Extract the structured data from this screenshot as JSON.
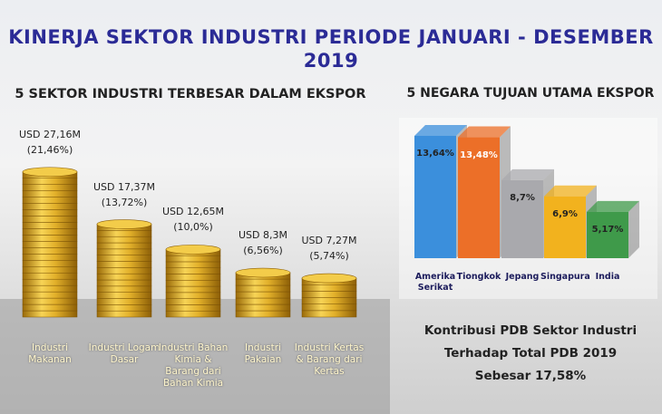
{
  "title": "KINERJA SEKTOR INDUSTRI PERIODE JANUARI - DESEMBER 2019",
  "chart_data": [
    {
      "type": "coin-stack",
      "title": "5 SEKTOR INDUSTRI TERBESAR DALAM EKSPOR",
      "categories": [
        "Industri Makanan",
        "Industri Logam Dasar",
        "Industri Bahan Kimia & Barang dari Bahan Kimia",
        "Industri Pakaian",
        "Industri Kertas & Barang dari Kertas"
      ],
      "values": [
        27.16,
        17.37,
        12.65,
        8.3,
        7.27
      ],
      "value_labels": [
        "USD 27,16M",
        "USD 17,37M",
        "USD 12,65M",
        "USD 8,3M",
        "USD 7,27M"
      ],
      "shares": [
        21.46,
        13.72,
        10.0,
        6.56,
        5.74
      ],
      "share_labels": [
        "(21,46%)",
        "(13,72%)",
        "(10,0%)",
        "(6,56%)",
        "(5,74%)"
      ],
      "color": "#d9a520"
    },
    {
      "type": "bar3d",
      "title": "5 NEGARA TUJUAN UTAMA EKSPOR",
      "categories": [
        "Amerika Serikat",
        "Tiongkok",
        "Jepang",
        "Singapura",
        "India"
      ],
      "values": [
        13.64,
        13.48,
        8.7,
        6.9,
        5.17
      ],
      "value_labels": [
        "13,64%",
        "13,48%",
        "8,7%",
        "6,9%",
        "5,17%"
      ],
      "colors": [
        "#3b8fdc",
        "#ec6f28",
        "#a9a9ad",
        "#f2b21e",
        "#3f9a4a"
      ]
    }
  ],
  "footnote": [
    "Kontribusi PDB Sektor Industri",
    "Terhadap Total PDB 2019",
    "Sebesar 17,58%"
  ]
}
